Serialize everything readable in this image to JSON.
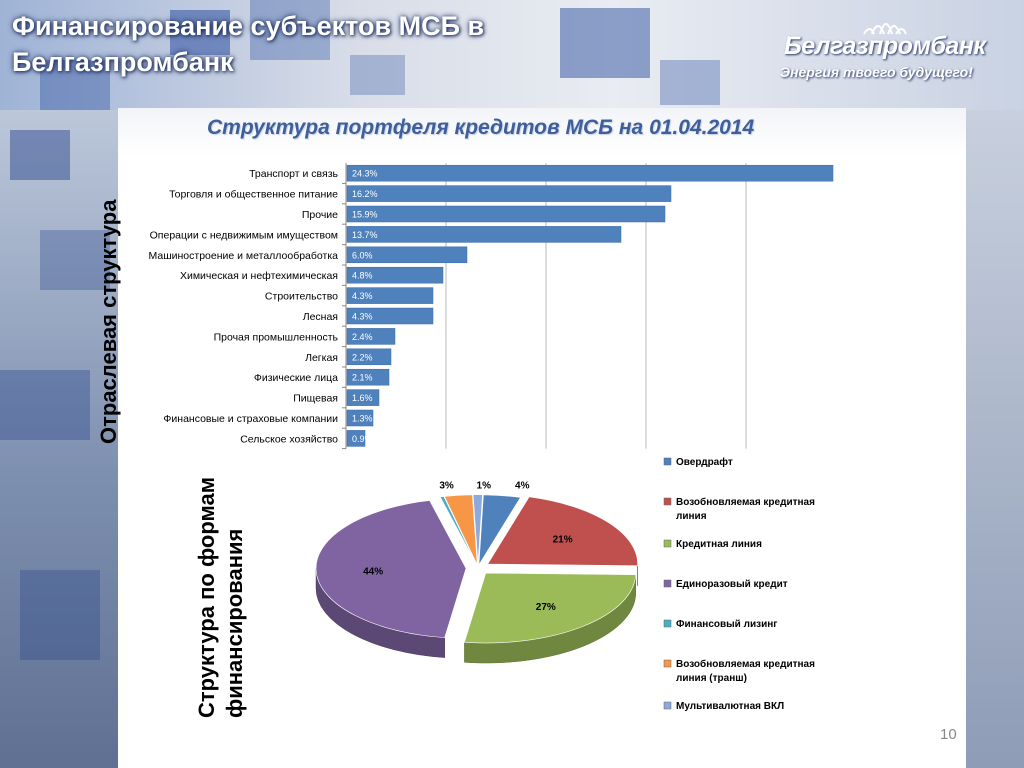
{
  "slide": {
    "title": "Финансирование субъектов МСБ в Белгазпромбанк",
    "subtitle": "Структура портфеля кредитов МСБ на 01.04.2014",
    "page_number": "10",
    "logo": {
      "name": "Белгазпромбанк",
      "slogan": "Энергия твоего будущего!"
    },
    "side_labels": {
      "industry": "Отраслевая структура",
      "forms_line1": "Структура по формам",
      "forms_line2": "финансирования"
    },
    "colors": {
      "bar": "#4f81bd",
      "accent": "#3e5f9c"
    }
  },
  "chart_data": [
    {
      "type": "bar",
      "orientation": "horizontal",
      "categories": [
        "Транспорт и связь",
        "Торговля и общественное питание",
        "Прочие",
        "Операции с недвижимым имуществом",
        "Машиностроение и металлообработка",
        "Химическая и нефтехимическая",
        "Строительство",
        "Лесная",
        "Прочая промышленность",
        "Легкая",
        "Физические лица",
        "Пищевая",
        "Финансовые и страховые компании",
        "Сельское хозяйство"
      ],
      "values": [
        24.3,
        16.2,
        15.9,
        13.7,
        6.0,
        4.8,
        4.3,
        4.3,
        2.4,
        2.2,
        2.1,
        1.6,
        1.3,
        0.9
      ],
      "data_labels": [
        "24.3%",
        "16.2%",
        "15.9%",
        "13.7%",
        "6.0%",
        "4.8%",
        "4.3%",
        "4.3%",
        "2.4%",
        "2.2%",
        "2.1%",
        "1.6%",
        "1.3%",
        "0.9%"
      ],
      "xlim": [
        0,
        25
      ],
      "grid": true,
      "legend": "none"
    },
    {
      "type": "pie",
      "style": "3d-exploded",
      "slices": [
        {
          "label": "Овердрафт",
          "value": 4,
          "data_label": "4%",
          "color": "#4f81bd"
        },
        {
          "label": "Возобновляемая кредитная линия",
          "value": 21,
          "data_label": "21%",
          "color": "#c0504d"
        },
        {
          "label": "Кредитная линия",
          "value": 27,
          "data_label": "27%",
          "color": "#9bbb59"
        },
        {
          "label": "Единоразовый кредит",
          "value": 44,
          "data_label": "44%",
          "color": "#8064a2"
        },
        {
          "label": "Финансовый лизинг",
          "value": 0.4,
          "data_label": "",
          "color": "#4bacc6"
        },
        {
          "label": "Возобновляемая кредитная линия (транш)",
          "value": 3,
          "data_label": "3%",
          "color": "#f79646"
        },
        {
          "label": "Мультивалютная ВКЛ",
          "value": 1,
          "data_label": "1%",
          "color": "#8ea9db"
        }
      ],
      "legend": "right"
    }
  ]
}
